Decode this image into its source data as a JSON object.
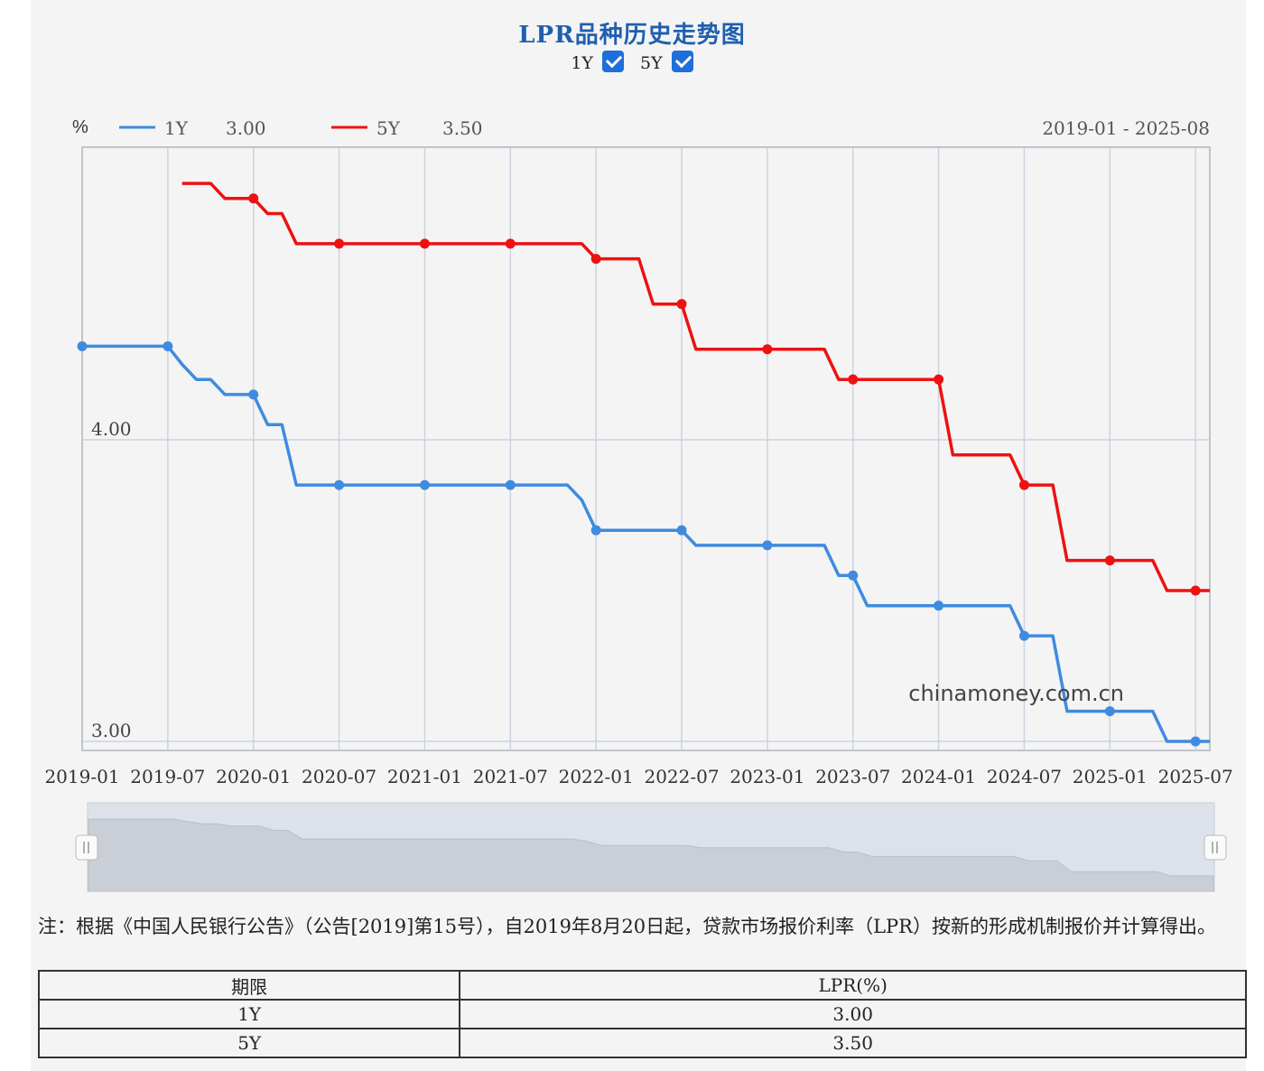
{
  "title": "LPR品种历史走势图",
  "toggles": [
    {
      "label": "1Y",
      "checked": true
    },
    {
      "label": "5Y",
      "checked": true
    }
  ],
  "unit_label": "%",
  "range_label": "2019-01 - 2025-08",
  "watermark": "chinamoney.com.cn",
  "colors": {
    "series_1y": "#3f8be0",
    "series_5y": "#ee1111",
    "grid": "#ccd3df",
    "axis": "#c0c4cc"
  },
  "chart_data": {
    "type": "line",
    "x_start": "2019-01",
    "x_end": "2025-08",
    "ylim": [
      2.97,
      4.97
    ],
    "y_ticks": [
      {
        "value": 4.0,
        "label": "4.00"
      },
      {
        "value": 3.0,
        "label": "3.00"
      }
    ],
    "x_ticks": [
      "2019-01",
      "2019-07",
      "2020-01",
      "2020-07",
      "2021-01",
      "2021-07",
      "2022-01",
      "2022-07",
      "2023-01",
      "2023-07",
      "2024-01",
      "2024-07",
      "2025-01",
      "2025-07"
    ],
    "marker_dates": [
      "2019-01",
      "2019-07",
      "2020-01",
      "2020-07",
      "2021-01",
      "2021-07",
      "2022-01",
      "2022-07",
      "2023-01",
      "2023-07",
      "2024-01",
      "2024-07",
      "2025-01",
      "2025-07"
    ],
    "series": [
      {
        "name": "1Y",
        "latest": "3.00",
        "points": [
          [
            "2019-01",
            4.31
          ],
          [
            "2019-07",
            4.31
          ],
          [
            "2019-08",
            4.25
          ],
          [
            "2019-09",
            4.2
          ],
          [
            "2019-10",
            4.2
          ],
          [
            "2019-11",
            4.15
          ],
          [
            "2020-01",
            4.15
          ],
          [
            "2020-02",
            4.05
          ],
          [
            "2020-03",
            4.05
          ],
          [
            "2020-04",
            3.85
          ],
          [
            "2021-11",
            3.85
          ],
          [
            "2021-12",
            3.8
          ],
          [
            "2022-01",
            3.7
          ],
          [
            "2022-07",
            3.7
          ],
          [
            "2022-08",
            3.65
          ],
          [
            "2023-05",
            3.65
          ],
          [
            "2023-06",
            3.55
          ],
          [
            "2023-07",
            3.55
          ],
          [
            "2023-08",
            3.45
          ],
          [
            "2024-06",
            3.45
          ],
          [
            "2024-07",
            3.35
          ],
          [
            "2024-09",
            3.35
          ],
          [
            "2024-10",
            3.1
          ],
          [
            "2025-04",
            3.1
          ],
          [
            "2025-05",
            3.0
          ],
          [
            "2025-08",
            3.0
          ]
        ]
      },
      {
        "name": "5Y",
        "latest": "3.50",
        "points": [
          [
            "2019-08",
            4.85
          ],
          [
            "2019-10",
            4.85
          ],
          [
            "2019-11",
            4.8
          ],
          [
            "2020-01",
            4.8
          ],
          [
            "2020-02",
            4.75
          ],
          [
            "2020-03",
            4.75
          ],
          [
            "2020-04",
            4.65
          ],
          [
            "2021-12",
            4.65
          ],
          [
            "2022-01",
            4.6
          ],
          [
            "2022-04",
            4.6
          ],
          [
            "2022-05",
            4.45
          ],
          [
            "2022-07",
            4.45
          ],
          [
            "2022-08",
            4.3
          ],
          [
            "2023-05",
            4.3
          ],
          [
            "2023-06",
            4.2
          ],
          [
            "2024-01",
            4.2
          ],
          [
            "2024-02",
            3.95
          ],
          [
            "2024-06",
            3.95
          ],
          [
            "2024-07",
            3.85
          ],
          [
            "2024-09",
            3.85
          ],
          [
            "2024-10",
            3.6
          ],
          [
            "2025-04",
            3.6
          ],
          [
            "2025-05",
            3.5
          ],
          [
            "2025-08",
            3.5
          ]
        ]
      }
    ]
  },
  "note": "注：根据《中国人民银行公告》（公告[2019]第15号），自2019年8月20日起，贷款市场报价利率（LPR）按新的形成机制报价并计算得出。",
  "table": {
    "headers": [
      "期限",
      "LPR(%)"
    ],
    "rows": [
      [
        "1Y",
        "3.00"
      ],
      [
        "5Y",
        "3.50"
      ]
    ]
  }
}
